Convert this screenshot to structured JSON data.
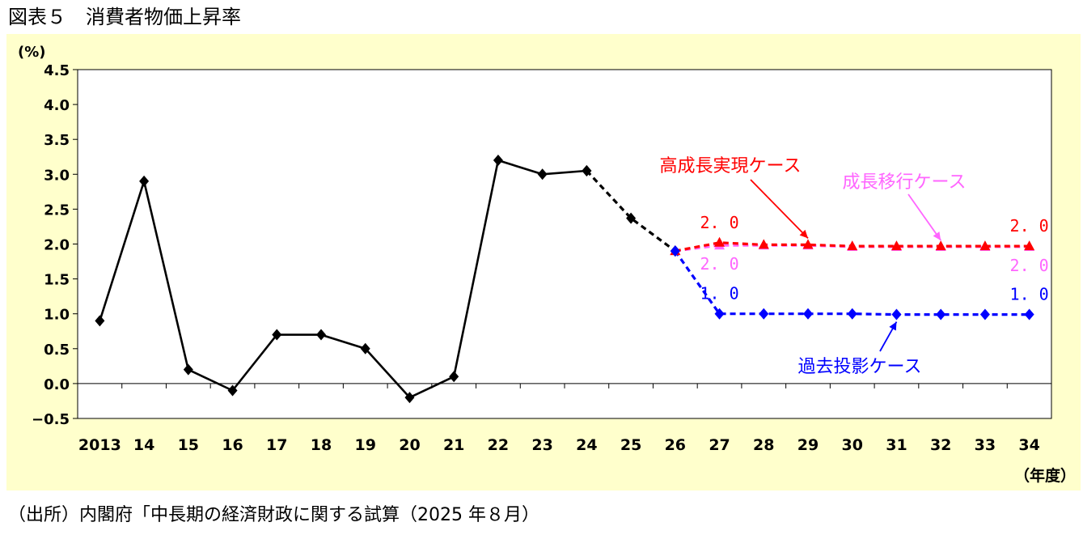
{
  "figure_title": "図表５　消費者物価上昇率",
  "source_note": "（出所）内閣府「中長期の経済財政に関する試算（2025 年８月）",
  "chart_data": {
    "type": "line",
    "title": "",
    "y_unit_label": "(%)",
    "x_unit_label": "（年度）",
    "ylim": [
      -0.5,
      4.5
    ],
    "y_ticks": [
      "4.5",
      "4.0",
      "3.5",
      "3.0",
      "2.5",
      "2.0",
      "1.5",
      "1.0",
      "0.5",
      "0.0",
      "−0.5"
    ],
    "y_tick_values": [
      4.5,
      4.0,
      3.5,
      3.0,
      2.5,
      2.0,
      1.5,
      1.0,
      0.5,
      0.0,
      -0.5
    ],
    "categories": [
      "2013",
      "14",
      "15",
      "16",
      "17",
      "18",
      "19",
      "20",
      "21",
      "22",
      "23",
      "24",
      "25",
      "26",
      "27",
      "28",
      "29",
      "30",
      "31",
      "32",
      "33",
      "34"
    ],
    "grid": false,
    "series": [
      {
        "key": "actual",
        "color": "#000000",
        "marker": "diamond",
        "values": [
          0.9,
          2.9,
          0.2,
          -0.1,
          0.7,
          0.7,
          0.5,
          -0.2,
          0.1,
          3.2,
          3.0,
          3.05,
          null,
          null,
          null,
          null,
          null,
          null,
          null,
          null,
          null,
          null
        ]
      },
      {
        "key": "outlook",
        "color": "#000000",
        "marker": "diamond",
        "dashed": true,
        "values": [
          null,
          null,
          null,
          null,
          null,
          null,
          null,
          null,
          null,
          null,
          null,
          3.05,
          2.37,
          1.9,
          null,
          null,
          null,
          null,
          null,
          null,
          null,
          null
        ]
      },
      {
        "name": "成長移行ケース",
        "color": "#ff66ff",
        "marker": "triangle",
        "dashed": true,
        "values": [
          null,
          null,
          null,
          null,
          null,
          null,
          null,
          null,
          null,
          null,
          null,
          null,
          null,
          1.9,
          1.98,
          1.98,
          1.98,
          1.96,
          1.96,
          1.96,
          1.96,
          1.96
        ]
      },
      {
        "name": "高成長実現ケース",
        "color": "#ff0000",
        "marker": "triangle",
        "dashed": true,
        "values": [
          null,
          null,
          null,
          null,
          null,
          null,
          null,
          null,
          null,
          null,
          null,
          null,
          null,
          1.9,
          2.02,
          1.99,
          1.99,
          1.97,
          1.97,
          1.97,
          1.97,
          1.97
        ]
      },
      {
        "name": "過去投影ケース",
        "color": "#0000ff",
        "marker": "diamond",
        "dashed": true,
        "values": [
          null,
          null,
          null,
          null,
          null,
          null,
          null,
          null,
          null,
          null,
          null,
          null,
          null,
          1.9,
          1.0,
          1.0,
          1.0,
          1.0,
          0.99,
          0.99,
          0.99,
          0.99
        ]
      }
    ],
    "data_labels": [
      {
        "text": "2. 0",
        "color": "#ff0000",
        "category": "27",
        "value": 2.02,
        "position": "above"
      },
      {
        "text": "2. 0",
        "color": "#ff66ff",
        "category": "27",
        "value": 1.98,
        "position": "below"
      },
      {
        "text": "1. 0",
        "color": "#0000ff",
        "category": "27",
        "value": 1.0,
        "position": "above"
      },
      {
        "text": "2. 0",
        "color": "#ff0000",
        "category": "34",
        "value": 1.97,
        "position": "above"
      },
      {
        "text": "2. 0",
        "color": "#ff66ff",
        "category": "34",
        "value": 1.96,
        "position": "below"
      },
      {
        "text": "1. 0",
        "color": "#0000ff",
        "category": "34",
        "value": 0.99,
        "position": "above"
      }
    ],
    "annotations": [
      {
        "text": "高成長実現ケース",
        "color": "#ff0000",
        "points_to": {
          "category": "29",
          "value": 1.99
        }
      },
      {
        "text": "成長移行ケース",
        "color": "#ff66ff",
        "points_to": {
          "category": "32",
          "value": 1.96
        }
      },
      {
        "text": "過去投影ケース",
        "color": "#0000ff",
        "points_to": {
          "category": "31",
          "value": 0.99
        }
      }
    ]
  }
}
